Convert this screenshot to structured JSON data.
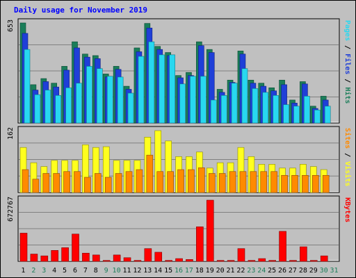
{
  "colors": {
    "hits": "#1b7e5a",
    "files": "#1f3fd8",
    "pages": "#28d8f0",
    "visits": "#ffff1e",
    "sites": "#ff8a00",
    "kbytes": "#ff0000",
    "weekend_label": "#1b7e5a",
    "weekday_label": "#000000"
  },
  "chart_data": {
    "type": "bar",
    "title": "Daily usage for November 2019",
    "days": [
      "1",
      "2",
      "3",
      "4",
      "5",
      "6",
      "7",
      "8",
      "9",
      "10",
      "11",
      "12",
      "13",
      "14",
      "15",
      "16",
      "17",
      "18",
      "19",
      "20",
      "21",
      "22",
      "23",
      "24",
      "25",
      "26",
      "27",
      "28",
      "29",
      "30",
      "31"
    ],
    "weekend_days": [
      "2",
      "3",
      "9",
      "10",
      "16",
      "17",
      "23",
      "24",
      "30",
      "31"
    ],
    "panels": [
      {
        "name": "top",
        "ymax_label": "653",
        "ylim": [
          0,
          653
        ],
        "legend": [
          "Pages",
          "Files",
          "Hits"
        ],
        "series": [
          {
            "name": "Hits",
            "values": [
              653,
              250,
              290,
              260,
              370,
              530,
              450,
              440,
              320,
              370,
              240,
              490,
              650,
              500,
              460,
              310,
              330,
              530,
              480,
              220,
              280,
              470,
              280,
              260,
              230,
              280,
              150,
              270,
              110,
              175,
              0
            ]
          },
          {
            "name": "Files",
            "values": [
              585,
              215,
              270,
              235,
              345,
              490,
              430,
              420,
              300,
              350,
              220,
              465,
              620,
              480,
              440,
              295,
              310,
              505,
              460,
              200,
              265,
              450,
              260,
              240,
              210,
              250,
              130,
              255,
              95,
              150,
              0
            ]
          },
          {
            "name": "Pages",
            "values": [
              480,
              185,
              215,
              180,
              230,
              260,
              370,
              355,
              305,
              300,
              195,
              435,
              530,
              445,
              445,
              255,
              305,
              305,
              150,
              180,
              260,
              355,
              225,
              200,
              180,
              120,
              110,
              175,
              85,
              110,
              0
            ]
          }
        ]
      },
      {
        "name": "middle",
        "ymax_label": "162",
        "ylim": [
          0,
          162
        ],
        "legend": [
          "Sites",
          "Visits"
        ],
        "series": [
          {
            "name": "Visits",
            "values": [
              118,
              78,
              68,
              84,
              84,
              84,
              125,
              118,
              120,
              84,
              84,
              84,
              145,
              162,
              135,
              94,
              94,
              106,
              64,
              78,
              78,
              118,
              94,
              74,
              74,
              64,
              64,
              74,
              68,
              60,
              0
            ]
          },
          {
            "name": "Sites",
            "values": [
              60,
              35,
              50,
              50,
              55,
              55,
              40,
              50,
              40,
              50,
              55,
              60,
              98,
              55,
              55,
              60,
              60,
              65,
              50,
              50,
              55,
              55,
              55,
              55,
              55,
              45,
              45,
              45,
              45,
              45,
              0
            ]
          }
        ]
      },
      {
        "name": "bottom",
        "ymax_label": "672767",
        "ylim": [
          0,
          672767
        ],
        "legend": [
          "KBytes"
        ],
        "series": [
          {
            "name": "KBytes",
            "values": [
              310000,
              80000,
              60000,
              120000,
              150000,
              300000,
              90000,
              70000,
              10000,
              70000,
              40000,
              10000,
              140000,
              100000,
              10000,
              30000,
              20000,
              380000,
              672767,
              10000,
              10000,
              140000,
              10000,
              30000,
              10000,
              330000,
              10000,
              160000,
              10000,
              60000,
              0
            ]
          }
        ]
      }
    ]
  }
}
